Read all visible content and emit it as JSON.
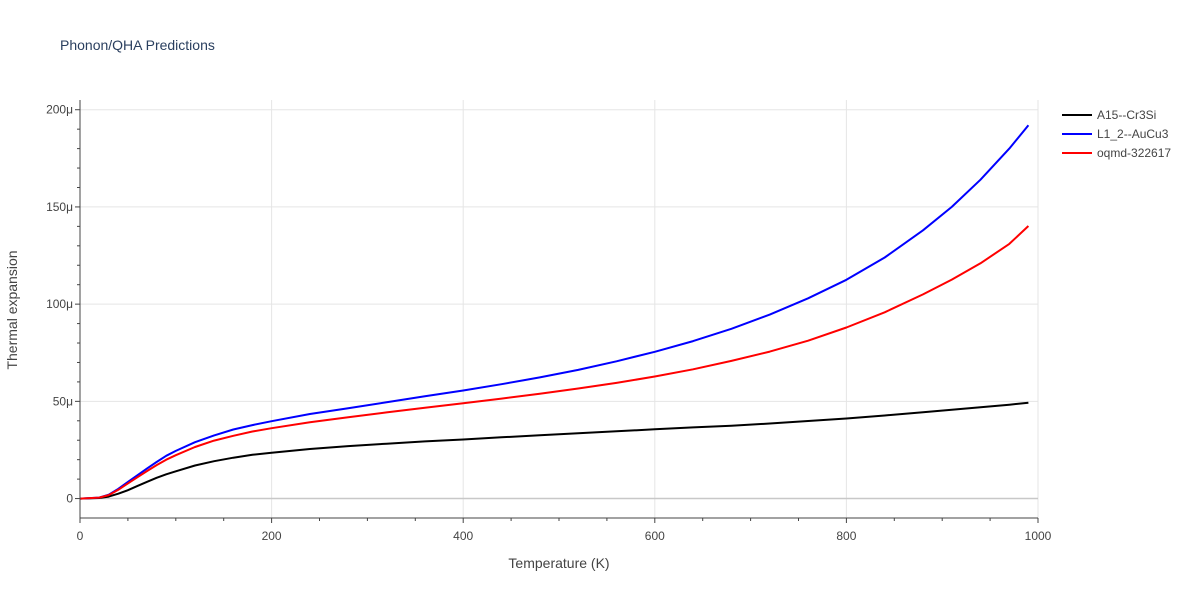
{
  "chart_data": {
    "type": "line",
    "title": "Phonon/QHA Predictions",
    "xlabel": "Temperature (K)",
    "ylabel": "Thermal expansion",
    "xlim": [
      0,
      1000
    ],
    "ylim": [
      -10,
      205
    ],
    "x_ticks": [
      0,
      200,
      400,
      600,
      800,
      1000
    ],
    "x_tick_labels": [
      "0",
      "200",
      "400",
      "600",
      "800",
      "1000"
    ],
    "y_ticks": [
      0,
      50,
      100,
      150,
      200
    ],
    "y_tick_labels": [
      "0",
      "50μ",
      "100μ",
      "150μ",
      "200μ"
    ],
    "y_unit": "μ (1e-6 1/K)",
    "grid": true,
    "legend_position": "top-right",
    "x": [
      0,
      20,
      30,
      40,
      50,
      60,
      70,
      80,
      90,
      100,
      120,
      140,
      160,
      180,
      200,
      240,
      280,
      320,
      360,
      400,
      440,
      480,
      520,
      560,
      600,
      640,
      680,
      720,
      760,
      800,
      840,
      880,
      910,
      940,
      970,
      990
    ],
    "series": [
      {
        "name": "A15--Cr3Si",
        "color": "#000000",
        "values": [
          0,
          0.3,
          1.0,
          2.5,
          4.3,
          6.5,
          8.6,
          10.7,
          12.5,
          14.0,
          17.0,
          19.2,
          21.0,
          22.5,
          23.6,
          25.5,
          27.0,
          28.2,
          29.4,
          30.4,
          31.5,
          32.6,
          33.6,
          34.6,
          35.6,
          36.6,
          37.5,
          38.6,
          39.9,
          41.2,
          42.7,
          44.4,
          45.7,
          47.0,
          48.3,
          49.3
        ]
      },
      {
        "name": "L1_2--AuCu3",
        "color": "#0000ff",
        "values": [
          0,
          0.5,
          2.0,
          5.0,
          8.5,
          12.0,
          15.5,
          18.8,
          22.0,
          24.5,
          29.0,
          32.5,
          35.5,
          37.8,
          39.8,
          43.5,
          46.5,
          49.5,
          52.6,
          55.6,
          58.8,
          62.3,
          66.2,
          70.6,
          75.5,
          81.0,
          87.3,
          94.6,
          103.0,
          112.5,
          124.0,
          138.0,
          150.0,
          164.0,
          180.0,
          192.0
        ]
      },
      {
        "name": "oqmd-322617",
        "color": "#ff0000",
        "values": [
          0,
          0.5,
          1.8,
          4.5,
          7.8,
          11.0,
          14.2,
          17.2,
          20.0,
          22.3,
          26.5,
          29.8,
          32.3,
          34.5,
          36.2,
          39.2,
          41.8,
          44.3,
          46.7,
          49.0,
          51.4,
          53.9,
          56.6,
          59.5,
          62.8,
          66.5,
          70.8,
          75.6,
          81.2,
          88.0,
          95.8,
          105.0,
          112.6,
          121.0,
          131.0,
          140.2
        ]
      }
    ]
  }
}
